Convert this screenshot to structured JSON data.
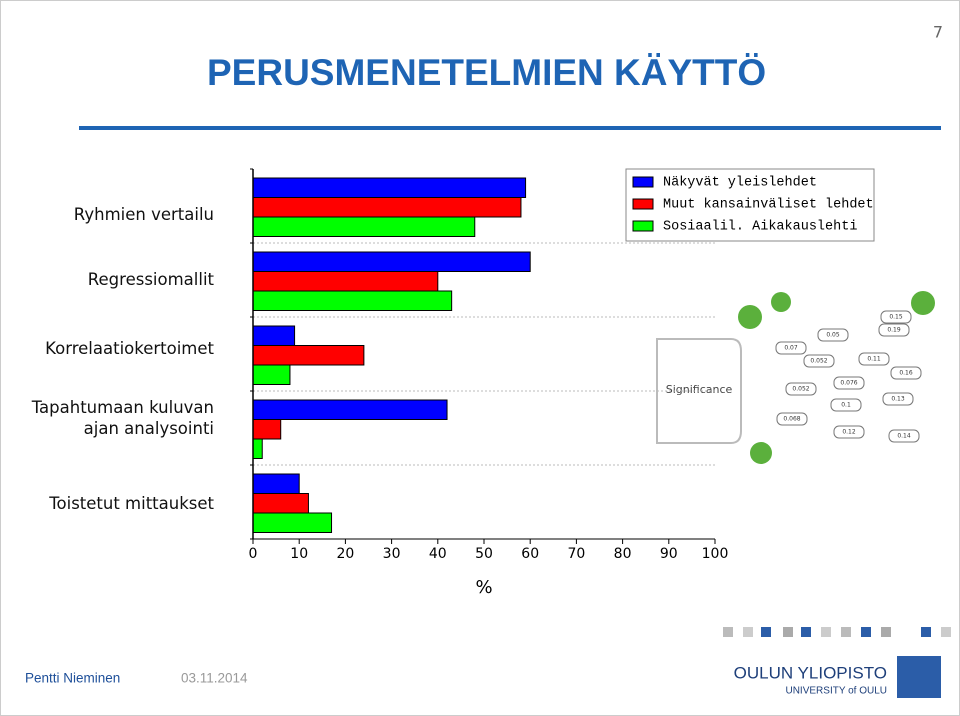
{
  "page_number": "7",
  "header": {
    "title": "PERUSMENETELMIEN KÄYTTÖ"
  },
  "chart_data": {
    "type": "bar",
    "orientation": "horizontal",
    "categories": [
      "Ryhmien vertailu",
      "Regressiomallit",
      "Korrelaatiokertoimet",
      "Tapahtumaan kuluvan ajan analysointi",
      "Toistetut mittaukset"
    ],
    "series": [
      {
        "name": "Näkyvät yleislehdet",
        "color": "#0000ff",
        "values": [
          59,
          60,
          9,
          42,
          10
        ]
      },
      {
        "name": "Muut kansainväliset lehdet",
        "color": "#ff0000",
        "values": [
          58,
          40,
          24,
          6,
          12
        ]
      },
      {
        "name": "Sosiaalil. Aikakauslehti",
        "color": "#00ff00",
        "values": [
          48,
          43,
          8,
          2,
          17
        ]
      }
    ],
    "xlim": [
      0,
      100
    ],
    "xticks": [
      0,
      10,
      20,
      30,
      40,
      50,
      60,
      70,
      80,
      90,
      100
    ],
    "xlabel": "%",
    "grid": true,
    "legend": "upper right"
  },
  "illustration": {
    "label": "Significance",
    "tags": [
      "0.15",
      "0.05",
      "0.19",
      "0.07",
      "0.052",
      "0.11",
      "0.16",
      "0.052",
      "0.076",
      "0.13",
      "0.068",
      "0.1",
      "0.12",
      "0.14"
    ]
  },
  "footer": {
    "author": "Pentti Nieminen",
    "date": "03.11.2014",
    "logo_name": "OULUN YLIOPISTO",
    "logo_sub": "UNIVERSITY of OULU"
  }
}
